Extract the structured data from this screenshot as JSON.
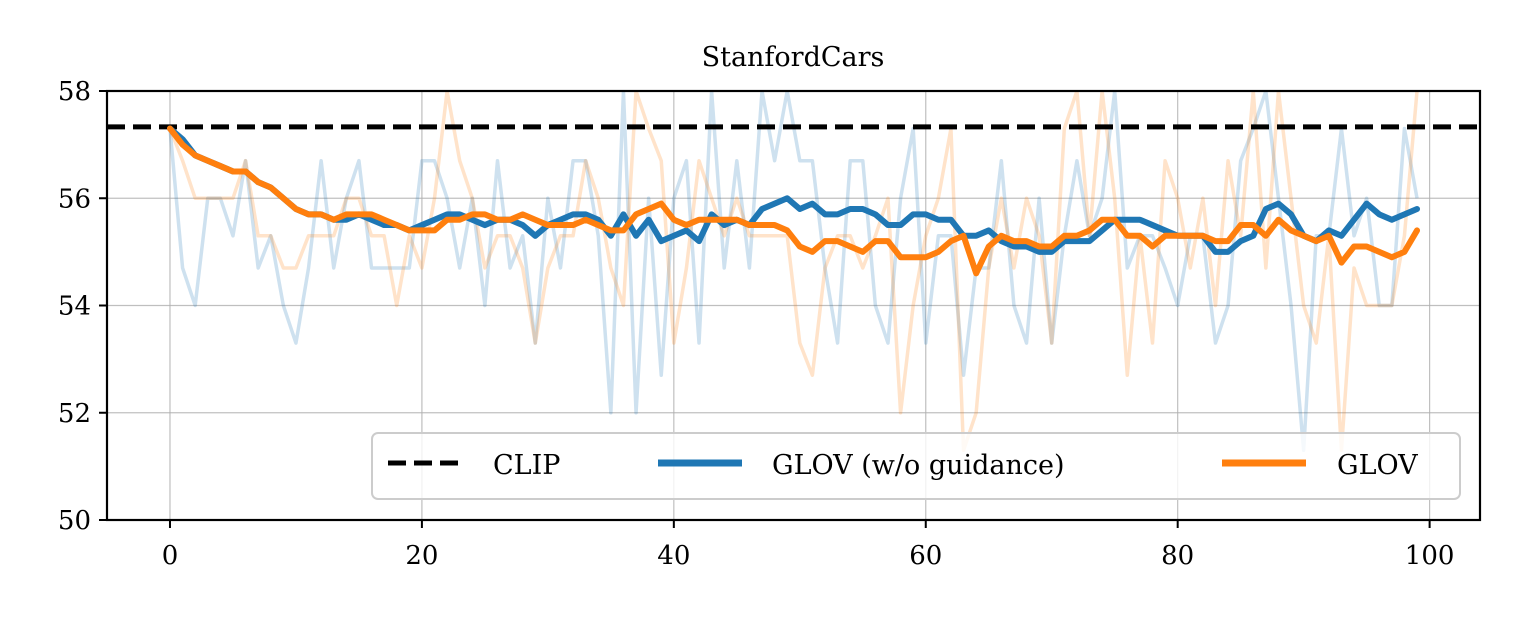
{
  "chart_data": {
    "type": "line",
    "title": "StanfordCars",
    "xlabel": "",
    "ylabel": "",
    "xlim": [
      -5,
      104
    ],
    "ylim": [
      50,
      58
    ],
    "xticks": [
      0,
      20,
      40,
      60,
      80,
      100
    ],
    "yticks": [
      50,
      52,
      54,
      56,
      58
    ],
    "grid": true,
    "legend_position": "lower-right",
    "baseline": {
      "name": "CLIP",
      "value": 57.33,
      "color": "#000000",
      "style": "dashed"
    },
    "series": [
      {
        "name": "GLOV (w/o guidance)",
        "color": "#1f77b4",
        "raw_values": [
          57.3,
          54.7,
          54.0,
          56.0,
          56.0,
          55.3,
          56.7,
          54.7,
          55.3,
          54.0,
          53.3,
          54.7,
          56.7,
          54.7,
          56.0,
          56.7,
          54.7,
          54.7,
          54.7,
          54.7,
          56.7,
          56.7,
          56.0,
          54.7,
          56.0,
          54.0,
          56.7,
          54.7,
          55.3,
          53.3,
          56.0,
          54.7,
          56.7,
          56.7,
          55.3,
          52.0,
          58.0,
          52.0,
          56.0,
          52.7,
          56.0,
          56.7,
          53.3,
          58.0,
          54.7,
          56.7,
          54.7,
          58.0,
          56.7,
          58.0,
          56.7,
          56.7,
          54.7,
          53.3,
          56.7,
          56.7,
          54.0,
          53.3,
          56.0,
          57.3,
          53.3,
          55.3,
          55.3,
          52.7,
          54.7,
          54.7,
          56.7,
          54.0,
          53.3,
          56.0,
          53.3,
          55.3,
          56.7,
          55.3,
          56.0,
          58.0,
          54.7,
          55.3,
          55.3,
          54.7,
          54.0,
          55.3,
          55.3,
          53.3,
          54.0,
          56.7,
          57.3,
          58.0,
          56.0,
          54.0,
          51.3,
          55.3,
          55.3,
          57.3,
          55.3,
          56.0,
          54.0,
          54.0,
          57.3,
          56.0
        ],
        "values": [
          57.3,
          57.1,
          56.8,
          56.7,
          56.6,
          56.5,
          56.5,
          56.3,
          56.2,
          56.0,
          55.8,
          55.7,
          55.7,
          55.6,
          55.6,
          55.7,
          55.6,
          55.5,
          55.5,
          55.4,
          55.5,
          55.6,
          55.7,
          55.7,
          55.6,
          55.5,
          55.6,
          55.6,
          55.5,
          55.3,
          55.5,
          55.6,
          55.7,
          55.7,
          55.6,
          55.3,
          55.7,
          55.3,
          55.6,
          55.2,
          55.3,
          55.4,
          55.2,
          55.7,
          55.5,
          55.6,
          55.5,
          55.8,
          55.9,
          56.0,
          55.8,
          55.9,
          55.7,
          55.7,
          55.8,
          55.8,
          55.7,
          55.5,
          55.5,
          55.7,
          55.7,
          55.6,
          55.6,
          55.3,
          55.3,
          55.4,
          55.2,
          55.1,
          55.1,
          55.0,
          55.0,
          55.2,
          55.2,
          55.2,
          55.4,
          55.6,
          55.6,
          55.6,
          55.5,
          55.4,
          55.3,
          55.3,
          55.3,
          55.0,
          55.0,
          55.2,
          55.3,
          55.8,
          55.9,
          55.7,
          55.3,
          55.2,
          55.4,
          55.3,
          55.6,
          55.9,
          55.7,
          55.6,
          55.7,
          55.8
        ]
      },
      {
        "name": "GLOV",
        "color": "#ff7f0e",
        "raw_values": [
          57.3,
          56.7,
          56.0,
          56.0,
          56.0,
          56.0,
          56.7,
          55.3,
          55.3,
          54.7,
          54.7,
          55.3,
          55.3,
          55.3,
          56.0,
          56.0,
          55.3,
          55.3,
          54.0,
          55.3,
          54.7,
          56.0,
          58.0,
          56.7,
          56.0,
          54.7,
          55.3,
          55.3,
          54.7,
          53.3,
          54.7,
          55.3,
          55.3,
          56.7,
          56.0,
          54.7,
          54.0,
          58.0,
          57.3,
          56.7,
          53.3,
          54.7,
          56.7,
          56.0,
          55.3,
          56.0,
          55.3,
          55.3,
          55.3,
          55.3,
          53.3,
          52.7,
          54.7,
          55.3,
          55.3,
          54.7,
          55.3,
          56.0,
          52.0,
          54.0,
          55.3,
          56.0,
          57.3,
          51.3,
          52.0,
          54.7,
          56.0,
          54.7,
          56.0,
          55.3,
          53.3,
          57.3,
          58.0,
          55.3,
          58.0,
          56.0,
          52.7,
          55.3,
          53.3,
          56.7,
          56.0,
          54.7,
          56.0,
          54.0,
          56.7,
          55.3,
          58.0,
          54.7,
          58.0,
          56.0,
          54.0,
          53.3,
          55.3,
          51.3,
          54.7,
          54.0,
          54.0,
          54.0,
          55.3,
          58.0
        ],
        "values": [
          57.3,
          57.0,
          56.8,
          56.7,
          56.6,
          56.5,
          56.5,
          56.3,
          56.2,
          56.0,
          55.8,
          55.7,
          55.7,
          55.6,
          55.7,
          55.7,
          55.7,
          55.6,
          55.5,
          55.4,
          55.4,
          55.4,
          55.6,
          55.6,
          55.7,
          55.7,
          55.6,
          55.6,
          55.7,
          55.6,
          55.5,
          55.5,
          55.5,
          55.6,
          55.5,
          55.4,
          55.4,
          55.7,
          55.8,
          55.9,
          55.6,
          55.5,
          55.6,
          55.6,
          55.6,
          55.6,
          55.5,
          55.5,
          55.5,
          55.4,
          55.1,
          55.0,
          55.2,
          55.2,
          55.1,
          55.0,
          55.2,
          55.2,
          54.9,
          54.9,
          54.9,
          55.0,
          55.2,
          55.3,
          54.6,
          55.1,
          55.3,
          55.2,
          55.2,
          55.1,
          55.1,
          55.3,
          55.3,
          55.4,
          55.6,
          55.6,
          55.3,
          55.3,
          55.1,
          55.3,
          55.3,
          55.3,
          55.3,
          55.2,
          55.2,
          55.5,
          55.5,
          55.3,
          55.6,
          55.4,
          55.3,
          55.2,
          55.3,
          54.8,
          55.1,
          55.1,
          55.0,
          54.9,
          55.0,
          55.4
        ]
      }
    ]
  },
  "legend": {
    "items": [
      {
        "label": "CLIP",
        "color": "#000000",
        "style": "dashed"
      },
      {
        "label": "GLOV (w/o guidance)",
        "color": "#1f77b4",
        "style": "solid"
      },
      {
        "label": "GLOV",
        "color": "#ff7f0e",
        "style": "solid"
      }
    ]
  }
}
